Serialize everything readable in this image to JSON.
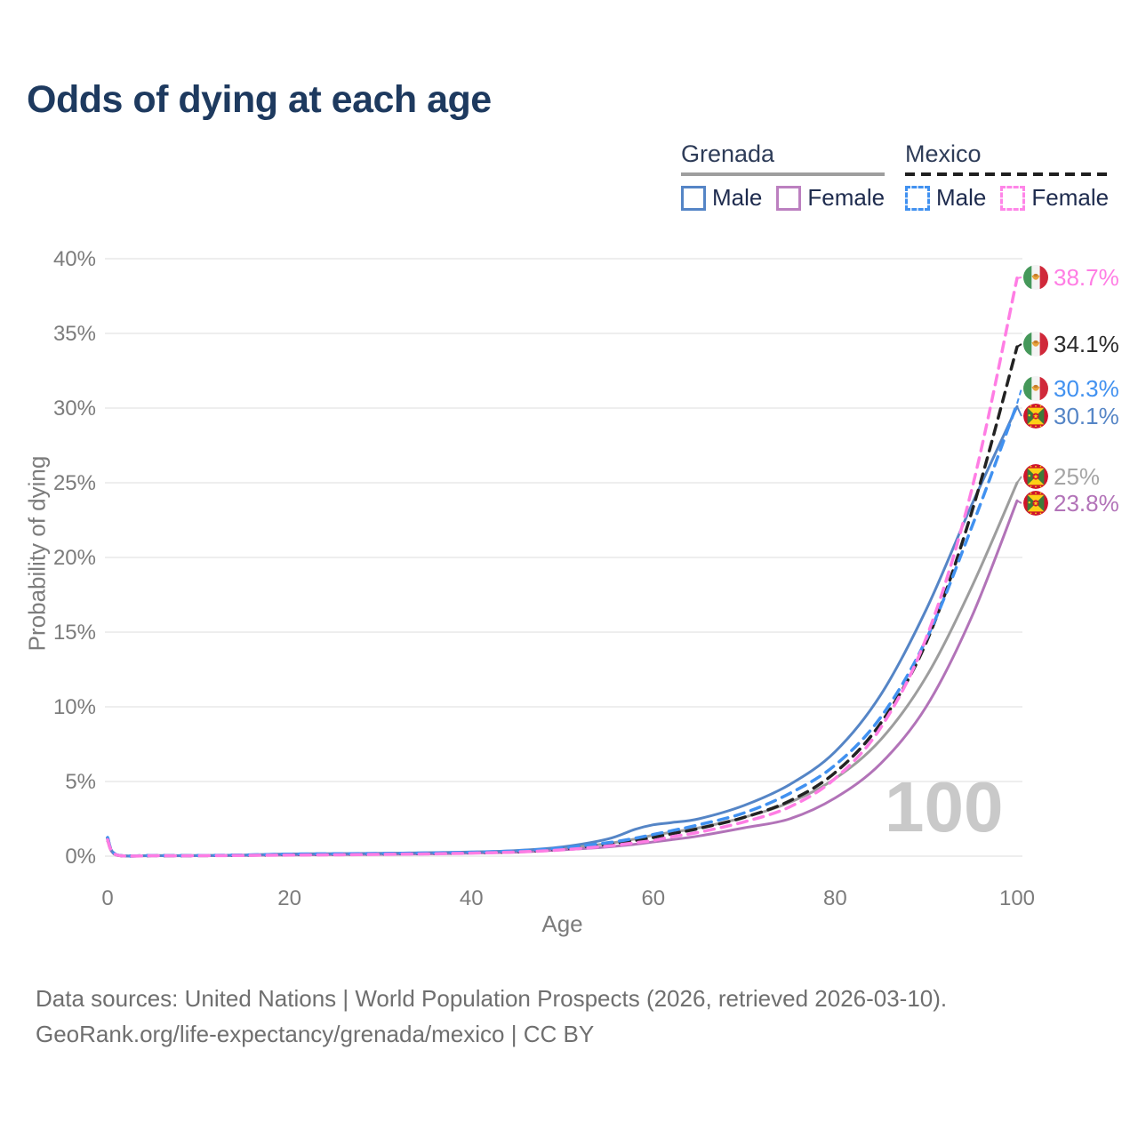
{
  "title": "Odds of dying at each age",
  "legend": {
    "groups": [
      {
        "country": "Grenada",
        "line_style": "solid",
        "header_rule_color": "#9e9e9e",
        "items": [
          {
            "label": "Male",
            "color": "#5585c6"
          },
          {
            "label": "Female",
            "color": "#bc80c0"
          }
        ]
      },
      {
        "country": "Mexico",
        "line_style": "dashed",
        "header_rule_color": "#1f1f1f",
        "items": [
          {
            "label": "Male",
            "color": "#4191f0"
          },
          {
            "label": "Female",
            "color": "#ff85e8"
          }
        ]
      }
    ]
  },
  "axes": {
    "y_label": "Probability of dying",
    "x_label": "Age",
    "y_ticks": [
      "0%",
      "5%",
      "10%",
      "15%",
      "20%",
      "25%",
      "30%",
      "35%",
      "40%"
    ],
    "x_ticks": [
      "0",
      "20",
      "40",
      "60",
      "80",
      "100"
    ]
  },
  "watermark": "100",
  "end_labels": [
    {
      "series": "Mexico Female",
      "country": "mexico",
      "value": "38.7%",
      "color": "#ff7de4"
    },
    {
      "series": "Mexico Total",
      "country": "mexico",
      "value": "34.1%",
      "color": "#2b2b2b"
    },
    {
      "series": "Mexico Male",
      "country": "mexico",
      "value": "30.3%",
      "color": "#4191f0"
    },
    {
      "series": "Grenada Male",
      "country": "grenada",
      "value": "30.1%",
      "color": "#5585c6"
    },
    {
      "series": "Grenada Total",
      "country": "grenada",
      "value": "25%",
      "color": "#a5a5a5"
    },
    {
      "series": "Grenada Female",
      "country": "grenada",
      "value": "23.8%",
      "color": "#b273b8"
    }
  ],
  "footer": {
    "line1": "Data sources: United Nations | World Population Prospects (2026, retrieved 2026-03-10).",
    "line2": "GeoRank.org/life-expectancy/grenada/mexico | CC BY"
  },
  "chart_data": {
    "type": "line",
    "title": "Odds of dying at each age",
    "xlabel": "Age",
    "ylabel": "Probability of dying",
    "xlim": [
      0,
      100
    ],
    "ylim": [
      0,
      40
    ],
    "y_unit": "%",
    "grid": "horizontal",
    "x": [
      0,
      1,
      5,
      10,
      15,
      20,
      25,
      30,
      35,
      40,
      45,
      50,
      55,
      58,
      60,
      62,
      65,
      70,
      75,
      80,
      85,
      90,
      95,
      100
    ],
    "series": [
      {
        "name": "Grenada Total",
        "country": "Grenada",
        "sex": "Total",
        "style": "solid",
        "color": "#9d9d9d",
        "values": [
          1.1,
          0.08,
          0.035,
          0.035,
          0.06,
          0.11,
          0.14,
          0.16,
          0.19,
          0.24,
          0.32,
          0.52,
          0.85,
          1.15,
          1.4,
          1.6,
          1.9,
          2.6,
          3.6,
          5.2,
          7.8,
          12.0,
          18.0,
          25.0
        ],
        "end_value_pct": 25.0
      },
      {
        "name": "Grenada Female",
        "country": "Grenada",
        "sex": "Female",
        "style": "solid",
        "color": "#b273b8",
        "values": [
          1.0,
          0.07,
          0.03,
          0.03,
          0.05,
          0.08,
          0.1,
          0.12,
          0.15,
          0.2,
          0.27,
          0.42,
          0.62,
          0.8,
          0.95,
          1.1,
          1.35,
          1.9,
          2.5,
          3.9,
          6.2,
          10.0,
          16.0,
          23.8
        ],
        "end_value_pct": 23.8
      },
      {
        "name": "Grenada Male",
        "country": "Grenada",
        "sex": "Male",
        "style": "solid",
        "color": "#5585c6",
        "values": [
          1.2,
          0.09,
          0.04,
          0.04,
          0.08,
          0.15,
          0.17,
          0.19,
          0.23,
          0.28,
          0.38,
          0.62,
          1.15,
          1.8,
          2.1,
          2.25,
          2.5,
          3.4,
          4.8,
          7.0,
          10.8,
          16.5,
          23.5,
          30.1
        ],
        "end_value_pct": 30.1
      },
      {
        "name": "Mexico Total",
        "country": "Mexico",
        "sex": "Total",
        "style": "dashed",
        "color": "#222222",
        "values": [
          1.2,
          0.08,
          0.035,
          0.035,
          0.06,
          0.1,
          0.13,
          0.15,
          0.18,
          0.23,
          0.3,
          0.48,
          0.8,
          1.05,
          1.25,
          1.5,
          1.85,
          2.6,
          3.7,
          5.6,
          8.9,
          14.3,
          23.0,
          34.1
        ],
        "end_value_pct": 34.1
      },
      {
        "name": "Mexico Male",
        "country": "Mexico",
        "sex": "Male",
        "style": "dashed",
        "color": "#4191f0",
        "values": [
          1.25,
          0.09,
          0.04,
          0.04,
          0.08,
          0.13,
          0.16,
          0.18,
          0.21,
          0.26,
          0.35,
          0.55,
          0.9,
          1.2,
          1.45,
          1.7,
          2.1,
          2.9,
          4.2,
          6.1,
          9.3,
          14.5,
          22.0,
          30.3
        ],
        "end_value_pct": 30.3
      },
      {
        "name": "Mexico Female",
        "country": "Mexico",
        "sex": "Female",
        "style": "dashed",
        "color": "#ff7de4",
        "values": [
          1.1,
          0.08,
          0.03,
          0.03,
          0.05,
          0.07,
          0.09,
          0.12,
          0.15,
          0.2,
          0.28,
          0.42,
          0.68,
          0.9,
          1.05,
          1.3,
          1.6,
          2.3,
          3.3,
          5.2,
          8.6,
          14.6,
          24.5,
          38.7
        ],
        "end_value_pct": 38.7
      }
    ]
  }
}
